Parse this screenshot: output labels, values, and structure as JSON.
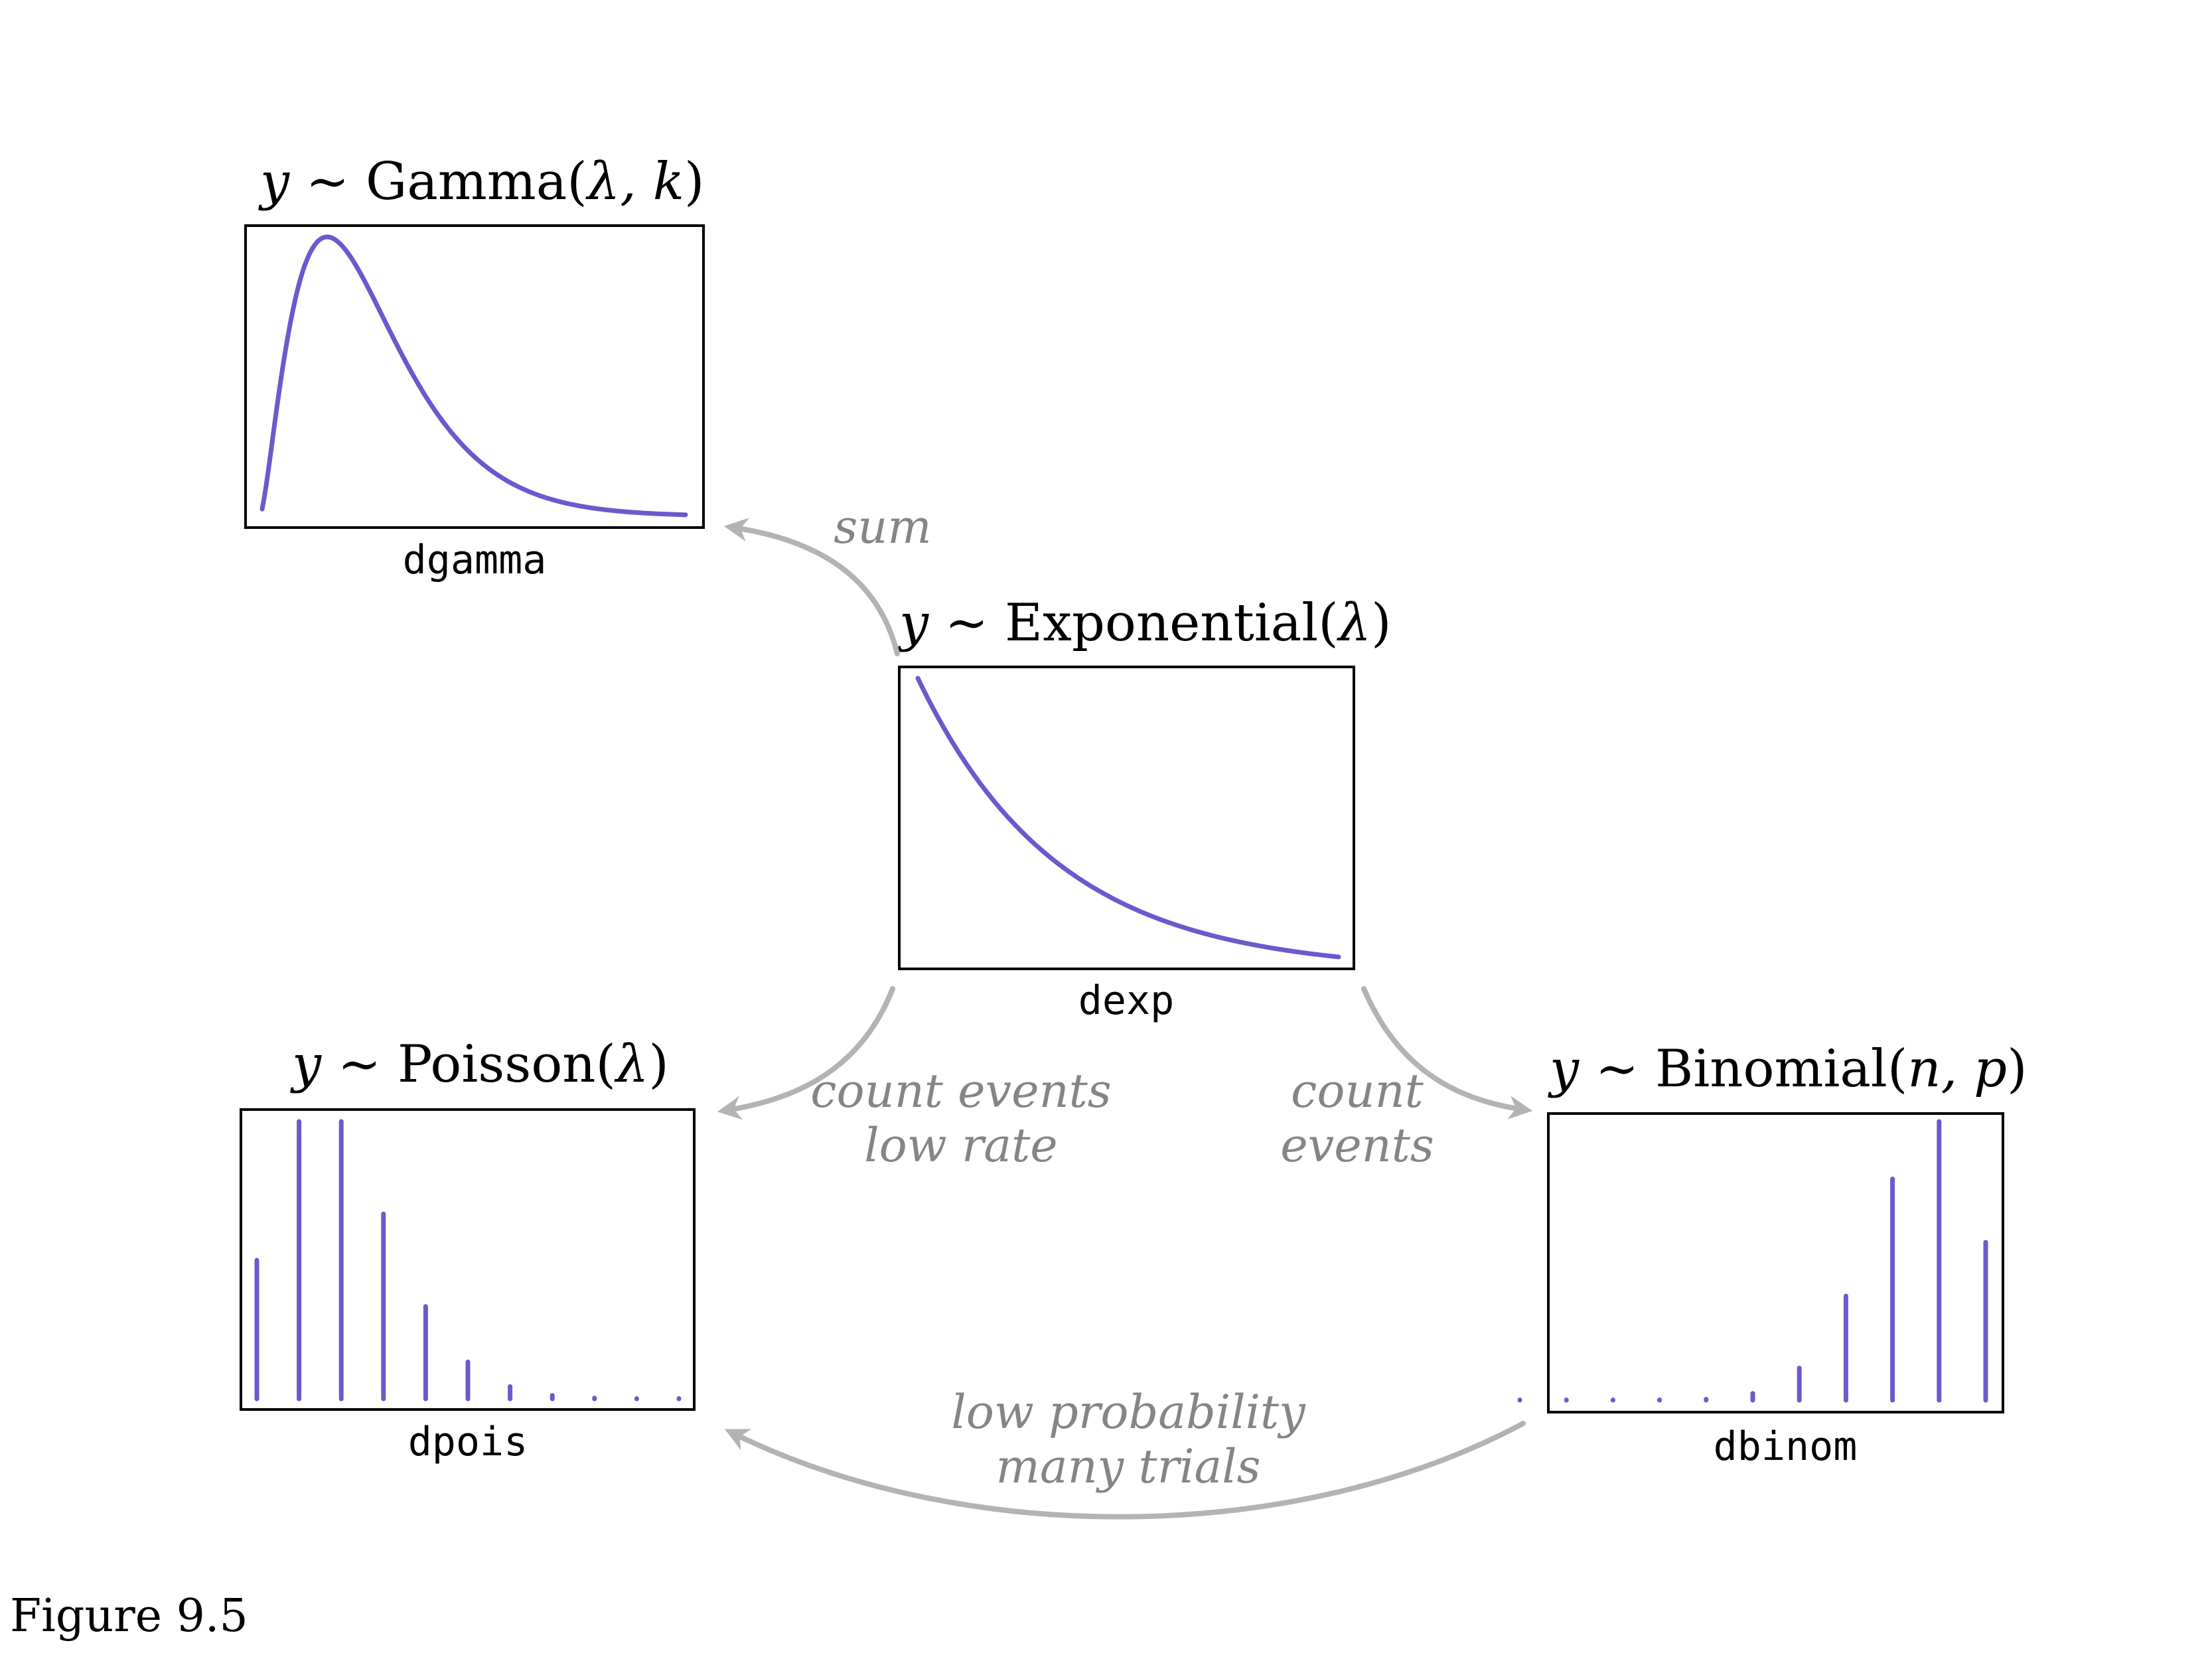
{
  "colors": {
    "curve": "#6a5acd",
    "arrow": "#b3b3b3",
    "edge_text": "#858585",
    "frame": "#000000"
  },
  "caption": "Figure 9.5",
  "nodes": {
    "gamma": {
      "title": {
        "lhs": "y",
        "op": " ∼ ",
        "name": "Gamma",
        "open": "(",
        "args": "λ, k",
        "close": ")"
      },
      "code": "dgamma",
      "kind": "density",
      "shape_k": 2.5,
      "rate": 1.0,
      "x_range": [
        0.05,
        9.5
      ]
    },
    "exponential": {
      "title": {
        "lhs": "y",
        "op": " ∼ ",
        "name": "Exponential",
        "open": "(",
        "args": "λ",
        "close": ")"
      },
      "code": "dexp",
      "kind": "density",
      "rate": 1.0,
      "x_range": [
        0,
        3
      ]
    },
    "poisson": {
      "title": {
        "lhs": "y",
        "op": " ∼ ",
        "name": "Poisson",
        "open": "(",
        "args": "λ",
        "close": ")"
      },
      "code": "dpois",
      "kind": "mass",
      "lambda": 2.0,
      "support": [
        0,
        1,
        2,
        3,
        4,
        5,
        6,
        7,
        8,
        9,
        10
      ]
    },
    "binomial": {
      "title": {
        "lhs": "y",
        "op": " ∼ ",
        "name": "Binomial",
        "open": "(",
        "args": "n, p",
        "close": ")"
      },
      "code": "dbinom",
      "kind": "mass",
      "n": 10,
      "p": 0.85,
      "support": [
        0,
        1,
        2,
        3,
        4,
        5,
        6,
        7,
        8,
        9,
        10
      ]
    }
  },
  "edges": [
    {
      "from": "exponential",
      "to": "gamma",
      "label": [
        "sum"
      ]
    },
    {
      "from": "exponential",
      "to": "poisson",
      "label": [
        "count events",
        "low rate"
      ]
    },
    {
      "from": "exponential",
      "to": "binomial",
      "label": [
        "count",
        "events"
      ]
    },
    {
      "from": "binomial",
      "to": "poisson",
      "label": [
        "low probability",
        "many trials"
      ]
    }
  ]
}
